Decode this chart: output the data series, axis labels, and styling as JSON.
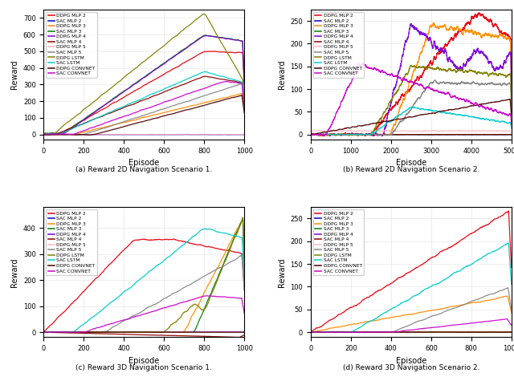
{
  "labels": [
    "DDPG MLP 2",
    "SAC MLP 2",
    "DDPG MLP 3",
    "SAC MLP 3",
    "DDPG MLP 4",
    "SAC MLP 4",
    "DDPG MLP 5",
    "SAC MLP 5",
    "DDPG LSTM",
    "SAC LSTM",
    "DDPG CONVNET",
    "SAC CONVNET"
  ],
  "colors": {
    "DDPG MLP 2": "#e8000d",
    "SAC MLP 2": "#0000cc",
    "DDPG MLP 3": "#ff8c00",
    "SAC MLP 3": "#008000",
    "DDPG MLP 4": "#7b00d4",
    "SAC MLP 4": "#8b0000",
    "DDPG MLP 5": "#ffb6c1",
    "SAC MLP 5": "#888888",
    "DDPG LSTM": "#808000",
    "SAC LSTM": "#00cccc",
    "DDPG CONVNET": "#4b0000",
    "SAC CONVNET": "#cc00cc"
  },
  "subplot_titles": [
    "(a) Reward 2D Navigation Scenario 1.",
    "(b) Reward 2D Navigation Scenario 2.",
    "(c) Reward 3D Navigation Scenario 1.",
    "(d) Reward 3D Navigation Scenario 2."
  ],
  "xlabel": "Episode",
  "ylabel": "Reward",
  "lw": 0.9
}
